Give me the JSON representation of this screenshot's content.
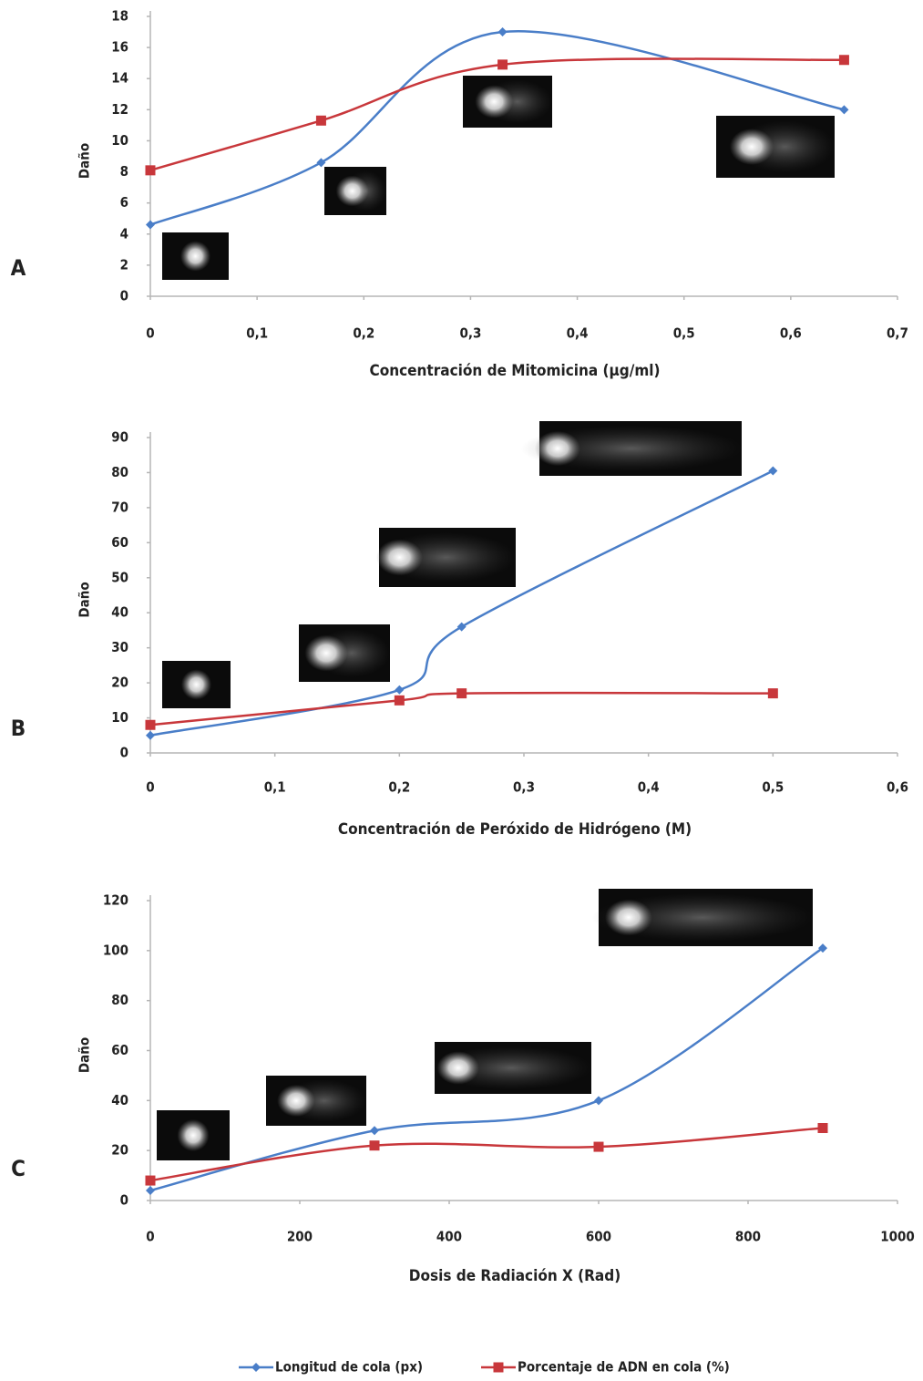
{
  "chart_data": [
    {
      "type": "line",
      "panel_label": "A",
      "xlabel": "Concentración de Mitomicina (µg/ml)",
      "ylabel": "Daño",
      "x": [
        0,
        0.16,
        0.33,
        0.65
      ],
      "series": [
        {
          "name": "Longitud de cola (px)",
          "color": "#4a7ec8",
          "marker": "diamond",
          "values": [
            4.6,
            8.6,
            17,
            12
          ]
        },
        {
          "name": "Porcentaje de ADN en cola (%)",
          "color": "#c8373b",
          "marker": "square",
          "values": [
            8.1,
            11.3,
            14.9,
            15.2
          ]
        }
      ],
      "xlim": [
        0,
        0.7
      ],
      "xticks": [
        0,
        {
          "value": 0.1,
          "label": "0,1"
        },
        {
          "value": 0.2,
          "label": "0,2"
        },
        {
          "value": 0.3,
          "label": "0,3"
        },
        {
          "value": 0.4,
          "label": "0,4"
        },
        {
          "value": 0.5,
          "label": "0,5"
        },
        {
          "value": 0.6,
          "label": "0,6"
        },
        {
          "value": 0.7,
          "label": "0,7"
        }
      ],
      "ylim": [
        0,
        18
      ],
      "yticks": [
        0,
        2,
        4,
        6,
        8,
        10,
        12,
        14,
        16,
        18
      ]
    },
    {
      "type": "line",
      "panel_label": "B",
      "xlabel": "Concentración de Peróxido de Hidrógeno (M)",
      "ylabel": "Daño",
      "x": [
        0,
        0.2,
        0.25,
        0.5
      ],
      "series": [
        {
          "color": "#4a7ec8",
          "marker": "diamond",
          "values": [
            5,
            18,
            36,
            80.5
          ]
        },
        {
          "color": "#c8373b",
          "marker": "square",
          "values": [
            8,
            15,
            17,
            17
          ]
        }
      ],
      "xlim": [
        0,
        0.6
      ],
      "xticks": [
        0,
        {
          "value": 0.1,
          "label": "0,1"
        },
        {
          "value": 0.2,
          "label": "0,2"
        },
        {
          "value": 0.3,
          "label": "0,3"
        },
        {
          "value": 0.4,
          "label": "0,4"
        },
        {
          "value": 0.5,
          "label": "0,5"
        },
        {
          "value": 0.6,
          "label": "0,6"
        }
      ],
      "ylim": [
        0,
        90
      ],
      "yticks": [
        0,
        10,
        20,
        30,
        40,
        50,
        60,
        70,
        80,
        90
      ]
    },
    {
      "type": "line",
      "panel_label": "C",
      "xlabel": "Dosis de Radiación X (Rad)",
      "ylabel": "Daño",
      "x": [
        0,
        300,
        600,
        900
      ],
      "series": [
        {
          "color": "#4a7ec8",
          "marker": "diamond",
          "values": [
            4,
            28,
            40,
            101
          ]
        },
        {
          "color": "#c8373b",
          "marker": "square",
          "values": [
            8,
            22,
            21.5,
            29
          ]
        }
      ],
      "xlim": [
        0,
        1000
      ],
      "xticks": [
        0,
        200,
        400,
        600,
        800,
        1000
      ],
      "ylim": [
        0,
        120
      ],
      "yticks": [
        0,
        20,
        40,
        60,
        80,
        100,
        120
      ]
    }
  ]
}
